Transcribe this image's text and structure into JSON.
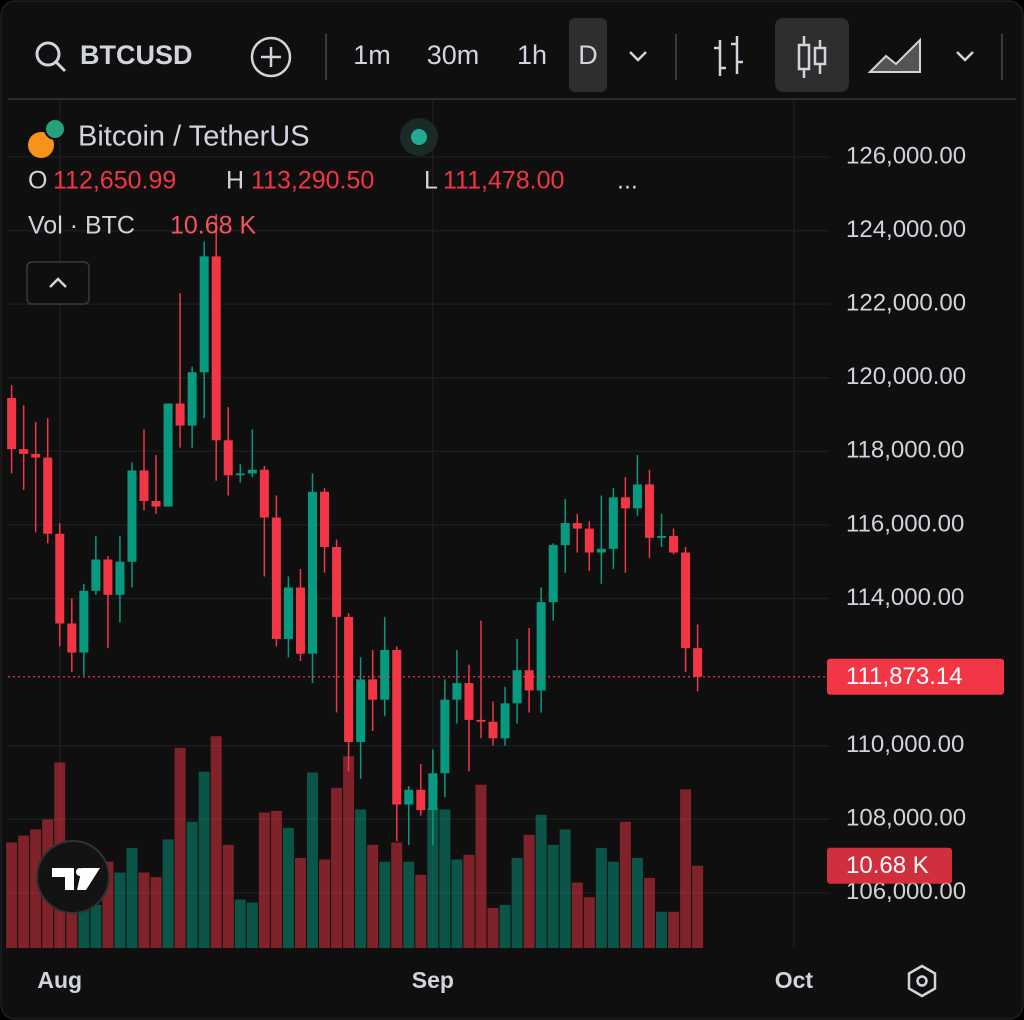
{
  "toolbar": {
    "symbol": "BTCUSD",
    "intervals": [
      "1m",
      "30m",
      "1h",
      "D"
    ]
  },
  "legend": {
    "name": "Bitcoin / TetherUS",
    "o_key": "O",
    "o": "112,650.99",
    "h_key": "H",
    "h": "113,290.50",
    "l_key": "L",
    "l": "111,478.00",
    "more": "...",
    "vol_name": "Vol · BTC",
    "vol": "10.68 K"
  },
  "chart_data": {
    "type": "candlestick",
    "categories": [
      null,
      null,
      null,
      null,
      null,
      null,
      null,
      null,
      null,
      null,
      null,
      null,
      null,
      null,
      null,
      null,
      null,
      null,
      null,
      null,
      null,
      null,
      null,
      null,
      null,
      null,
      null,
      null,
      null,
      null,
      null,
      null,
      null,
      null,
      null,
      null,
      null,
      null,
      null,
      null,
      null,
      null,
      null,
      null,
      null,
      null,
      null,
      null,
      null,
      null,
      null,
      null,
      null,
      null,
      null,
      null,
      null,
      null
    ],
    "open": [
      119450,
      118060,
      117930,
      117830,
      115760,
      113320,
      112530,
      114210,
      115060,
      114100,
      115000,
      117480,
      116650,
      116500,
      119300,
      118700,
      120150,
      123300,
      118300,
      117350,
      117400,
      117500,
      116200,
      112900,
      114300,
      112500,
      116900,
      115400,
      113500,
      110100,
      111800,
      111250,
      112600,
      108400,
      108800,
      108250,
      109250,
      111250,
      111700,
      110700,
      110650,
      110200,
      111150,
      112050,
      111500,
      113900,
      115450,
      116050,
      115900,
      115250,
      115350,
      116750,
      116450,
      117100,
      115650,
      115700,
      115250,
      112650.99
    ],
    "high": [
      119800,
      119250,
      118800,
      118900,
      116050,
      114000,
      114400,
      115700,
      115150,
      115700,
      117700,
      118600,
      117900,
      119300,
      122300,
      120300,
      123700,
      124450,
      119200,
      117650,
      118600,
      117600,
      116800,
      114600,
      114800,
      117400,
      117000,
      115600,
      113600,
      112400,
      112600,
      113500,
      112700,
      108900,
      109500,
      109900,
      111800,
      112600,
      112200,
      113400,
      111200,
      111600,
      112900,
      113200,
      114300,
      115500,
      116700,
      116300,
      116100,
      116800,
      117000,
      117300,
      117900,
      117500,
      116300,
      115900,
      115400,
      113290.5
    ],
    "low": [
      117400,
      116950,
      115800,
      115500,
      112700,
      112000,
      111900,
      114100,
      112650,
      113350,
      114300,
      116400,
      116300,
      116500,
      118100,
      118100,
      118900,
      117200,
      116800,
      117150,
      117300,
      114600,
      112700,
      112400,
      112300,
      111700,
      114700,
      110900,
      109300,
      109100,
      110400,
      110800,
      107400,
      107300,
      108100,
      107300,
      108600,
      110600,
      109300,
      110200,
      110000,
      110000,
      110600,
      110900,
      110900,
      113400,
      114700,
      115250,
      114750,
      114400,
      114800,
      114700,
      116250,
      115100,
      115400,
      115200,
      112000,
      111478
    ],
    "close": [
      118060,
      117930,
      117830,
      115760,
      113320,
      112530,
      114210,
      115060,
      114100,
      115000,
      117480,
      116650,
      116500,
      119300,
      118700,
      120150,
      123300,
      118300,
      117350,
      117400,
      117500,
      116200,
      112900,
      114300,
      112500,
      116900,
      115400,
      113500,
      110100,
      111800,
      111250,
      112600,
      108400,
      108800,
      108250,
      109250,
      111250,
      111700,
      110700,
      110650,
      110200,
      111150,
      112050,
      111500,
      113900,
      115450,
      116050,
      115900,
      115250,
      115350,
      116750,
      116450,
      117100,
      115650,
      115700,
      115250,
      112650.99,
      111873.14
    ],
    "volume": [
      13.7,
      14.6,
      15.4,
      16.7,
      24.1,
      13.7,
      8.9,
      5.6,
      11.2,
      9.8,
      13.0,
      9.8,
      9.2,
      14.1,
      26.0,
      16.4,
      22.9,
      27.5,
      13.4,
      6.3,
      5.9,
      17.6,
      17.8,
      15.6,
      11.7,
      22.8,
      11.5,
      20.8,
      24.9,
      18.0,
      13.4,
      11.2,
      13.7,
      11.2,
      9.5,
      18.2,
      18.0,
      11.5,
      12.1,
      21.2,
      5.2,
      5.6,
      11.7,
      14.7,
      17.3,
      13.4,
      15.4,
      8.5,
      6.6,
      13.0,
      11.2,
      16.4,
      11.7,
      9.1,
      4.7,
      4.7,
      20.6,
      10.68
    ],
    "volume_last_label": "10.68 K",
    "up_color": "#089981",
    "down_color": "#f23645",
    "xlim": [
      -0.3,
      68
    ],
    "ylim": [
      104500,
      127550
    ],
    "volume_ylim": [
      0,
      40
    ],
    "xticks": [
      {
        "value": 4,
        "label": "Aug"
      },
      {
        "value": 35,
        "label": "Sep"
      },
      {
        "value": 65,
        "label": "Oct"
      }
    ],
    "yticks": [
      {
        "value": 106000,
        "label": "106,000.00"
      },
      {
        "value": 108000,
        "label": "108,000.00"
      },
      {
        "value": 110000,
        "label": "110,000.00"
      },
      {
        "value": 114000,
        "label": "114,000.00"
      },
      {
        "value": 116000,
        "label": "116,000.00"
      },
      {
        "value": 118000,
        "label": "118,000.00"
      },
      {
        "value": 120000,
        "label": "120,000.00"
      },
      {
        "value": 122000,
        "label": "122,000.00"
      },
      {
        "value": 124000,
        "label": "124,000.00"
      },
      {
        "value": 126000,
        "label": "126,000.00"
      }
    ],
    "last_price": {
      "value": 111873.14,
      "label": "111,873.14"
    },
    "grid": true
  }
}
